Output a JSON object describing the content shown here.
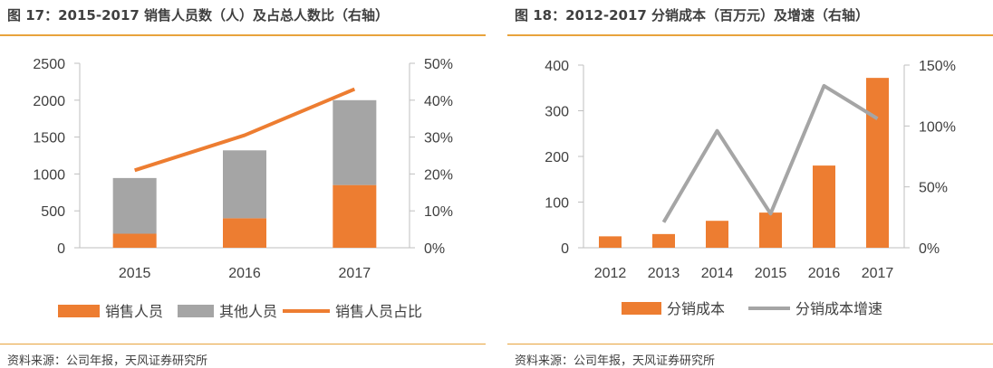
{
  "charts": [
    {
      "title": "图 17：2015-2017 销售人员数（人）及占总人数比（右轴）",
      "source": "资料来源：公司年报，天风证券研究所",
      "legend": [
        "销售人员",
        "其他人员",
        "销售人员占比"
      ]
    },
    {
      "title": "图 18：2012-2017 分销成本（百万元）及增速（右轴）",
      "source": "资料来源：公司年报，天风证券研究所",
      "legend": [
        "分销成本",
        "分销成本增速"
      ]
    }
  ],
  "colors": {
    "orange": "#ED7D31",
    "gray": "#A5A5A5",
    "rule": "#E8A33C"
  },
  "chart_data": [
    {
      "type": "bar",
      "stacked": true,
      "categories": [
        "2015",
        "2016",
        "2017"
      ],
      "series": [
        {
          "name": "销售人员",
          "type": "bar",
          "axis": "left",
          "values": [
            190,
            400,
            850
          ]
        },
        {
          "name": "其他人员",
          "type": "bar",
          "axis": "left",
          "values": [
            755,
            920,
            1150
          ]
        },
        {
          "name": "销售人员占比",
          "type": "line",
          "axis": "right",
          "values": [
            21,
            30.5,
            43
          ]
        }
      ],
      "ylim": [
        0,
        2500
      ],
      "yticks": [
        0,
        500,
        1000,
        1500,
        2000,
        2500
      ],
      "y2lim": [
        0,
        50
      ],
      "y2ticks": [
        "0%",
        "10%",
        "20%",
        "30%",
        "40%",
        "50%"
      ],
      "legend_position": "bottom",
      "grid": false
    },
    {
      "type": "bar",
      "categories": [
        "2012",
        "2013",
        "2014",
        "2015",
        "2016",
        "2017"
      ],
      "series": [
        {
          "name": "分销成本",
          "type": "bar",
          "axis": "left",
          "values": [
            25,
            30,
            59,
            77,
            180,
            372
          ]
        },
        {
          "name": "分销成本增速",
          "type": "line",
          "axis": "right",
          "values": [
            null,
            21,
            96,
            28,
            133,
            106
          ]
        }
      ],
      "ylim": [
        0,
        400
      ],
      "yticks": [
        0,
        100,
        200,
        300,
        400
      ],
      "y2lim": [
        0,
        150
      ],
      "y2ticks": [
        "0%",
        "50%",
        "100%",
        "150%"
      ],
      "legend_position": "bottom",
      "grid": false
    }
  ]
}
